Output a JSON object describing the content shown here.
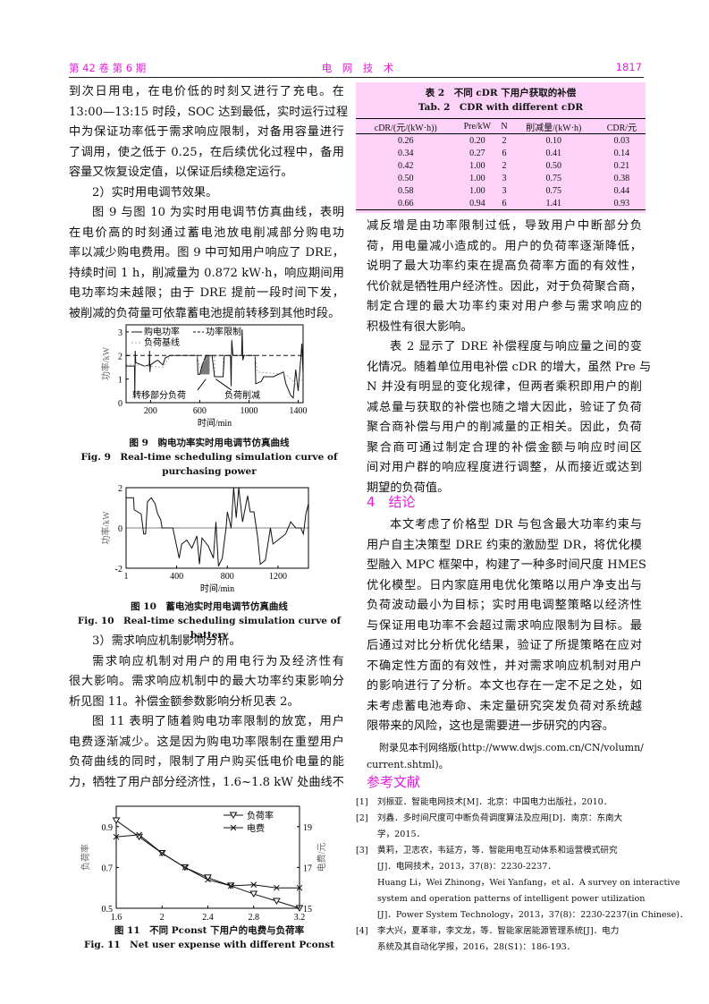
{
  "header": {
    "left": "第 42 卷 第 6 期",
    "center": "电　网　技　术",
    "right": "1817"
  },
  "left": {
    "p1": [
      "到次日用电，在电价低的时刻又进行了充电。在",
      "13:00—13:15 时段，SOC 达到最低，实时运行过程",
      "中为保证功率低于需求响应限制，对备用容量进行",
      "了调用，使之低于 0.25，在后续优化过程中，备用",
      "容量又恢复设定值，以保证后续稳定运行。"
    ],
    "s2": "2）实时用电调节效果。",
    "p2": [
      "图 9 与图 10 为实时用电调节仿真曲线，表明",
      "在电价高的时刻通过蓄电池放电削减部分购电功",
      "率以减少购电费用。图 9 中可知用户响应了 DRE，",
      "持续时间 1 h，削减量为 0.872 kW·h，响应期间用",
      "电功率均未越限；由于 DRE 提前一段时间下发，",
      "被削减的负荷量可依靠蓄电池提前转移到其他时段。"
    ],
    "s3": "3）需求响应机制影响分析。",
    "p3": [
      "需求响应机制对用户的用电行为及经济性有",
      "很大影响。需求响应机制中的最大功率约束影响分",
      "析见图 11。补偿金额参数影响分析见表 2。"
    ],
    "p4": [
      "图 11 表明了随着购电功率限制的放宽，用户",
      "电费逐渐减少。这是因为购电功率限制在重塑用户",
      "负荷曲线的同时，限制了用户购买低电价电量的能",
      "力，牺牲了用户部分经济性，1.6~1.8 kW 处曲线不"
    ]
  },
  "fig9": {
    "cap_cn": "图 9　购电功率实时用电调节仿真曲线",
    "cap_en": [
      "Fig. 9　Real-time scheduling simulation curve of",
      "purchasing power"
    ]
  },
  "fig10": {
    "cap_cn": "图 10　蓄电池实时用电调节仿真曲线",
    "cap_en": "Fig. 10　Real-time scheduling simulation curve of battery"
  },
  "fig11": {
    "cap_cn": "图 11　不同 Pconst 下用户的电费与负荷率",
    "cap_en": "Fig. 11　Net user expense with different Pconst"
  },
  "chart_data": [
    {
      "type": "line",
      "xlabel": "时间/min",
      "ylabel": "功率/kW",
      "xlim": [
        1,
        1440
      ],
      "ylim": [
        0,
        3.3
      ],
      "xticks": [
        200,
        600,
        1000,
        1400
      ],
      "yticks": [
        0,
        1,
        2,
        3
      ],
      "series": [
        {
          "name": "购电功率",
          "style": "solid",
          "points": [
            [
              1,
              1.55
            ],
            [
              70,
              1.55
            ],
            [
              72,
              0.25
            ],
            [
              75,
              2.2
            ],
            [
              80,
              1.7
            ],
            [
              150,
              1.55
            ],
            [
              190,
              1.6
            ],
            [
              192,
              2.2
            ],
            [
              195,
              1.3
            ],
            [
              200,
              1.6
            ],
            [
              240,
              1.75
            ],
            [
              260,
              1.8
            ],
            [
              300,
              1.6
            ],
            [
              320,
              1.9
            ],
            [
              360,
              2.0
            ],
            [
              580,
              2.0
            ],
            [
              585,
              1.2
            ],
            [
              600,
              1.2
            ],
            [
              620,
              1.6
            ],
            [
              650,
              2.0
            ],
            [
              700,
              2.0
            ],
            [
              720,
              1.1
            ],
            [
              790,
              1.1
            ],
            [
              800,
              2.0
            ],
            [
              850,
              2.0
            ],
            [
              855,
              0.7
            ],
            [
              860,
              2.65
            ],
            [
              870,
              2.0
            ],
            [
              940,
              2.0
            ],
            [
              945,
              3.1
            ],
            [
              950,
              1.8
            ],
            [
              960,
              2.0
            ],
            [
              1050,
              2.0
            ],
            [
              1055,
              0.8
            ],
            [
              1100,
              0.9
            ],
            [
              1120,
              1.1
            ],
            [
              1200,
              1.1
            ],
            [
              1280,
              1.3
            ],
            [
              1300,
              0.8
            ],
            [
              1340,
              0.3
            ],
            [
              1360,
              0.2
            ],
            [
              1380,
              1.4
            ],
            [
              1400,
              0.5
            ],
            [
              1420,
              1.8
            ],
            [
              1430,
              2.5
            ],
            [
              1440,
              1.2
            ]
          ]
        },
        {
          "name": "负荷基线",
          "style": "dotted",
          "points": [
            [
              1,
              1.6
            ],
            [
              80,
              1.6
            ],
            [
              300,
              1.5
            ],
            [
              360,
              2.0
            ],
            [
              580,
              2.0
            ],
            [
              600,
              1.5
            ],
            [
              640,
              1.8
            ],
            [
              700,
              2.0
            ],
            [
              1050,
              2.0
            ],
            [
              1070,
              1.3
            ],
            [
              1300,
              1.2
            ],
            [
              1380,
              0.8
            ],
            [
              1440,
              1.0
            ]
          ]
        },
        {
          "name": "功率限制",
          "style": "dashed",
          "points": [
            [
              1,
              2.0
            ],
            [
              1440,
              2.0
            ]
          ]
        }
      ],
      "annotations": [
        "转移部分负荷",
        "负荷削减"
      ]
    },
    {
      "type": "line",
      "xlabel": "时间/min",
      "ylabel": "功率/kW",
      "xlim": [
        1,
        1440
      ],
      "ylim": [
        -2,
        2
      ],
      "xticks": [
        1,
        400,
        800,
        1200
      ],
      "yticks": [
        -2,
        0,
        2
      ],
      "series": [
        {
          "points": [
            [
              1,
              1.5
            ],
            [
              60,
              1.5
            ],
            [
              65,
              0.9
            ],
            [
              120,
              0.7
            ],
            [
              140,
              -0.3
            ],
            [
              155,
              -0.3
            ],
            [
              170,
              1.3
            ],
            [
              200,
              1.5
            ],
            [
              230,
              1.2
            ],
            [
              250,
              0.7
            ],
            [
              275,
              0.4
            ],
            [
              285,
              0.0
            ],
            [
              370,
              0
            ],
            [
              380,
              -0.3
            ],
            [
              400,
              -0.9
            ],
            [
              420,
              -1.5
            ],
            [
              440,
              -0.8
            ],
            [
              480,
              -0.6
            ],
            [
              520,
              -1.0
            ],
            [
              560,
              -0.4
            ],
            [
              580,
              -1.8
            ],
            [
              600,
              -0.5
            ],
            [
              650,
              -0.9
            ],
            [
              690,
              -1.5
            ],
            [
              710,
              0.3
            ],
            [
              730,
              -1.9
            ],
            [
              760,
              -1.5
            ],
            [
              790,
              0.0
            ],
            [
              800,
              0.8
            ],
            [
              830,
              0.0
            ],
            [
              850,
              2.0
            ],
            [
              870,
              0.5
            ],
            [
              890,
              2.0
            ],
            [
              920,
              0.3
            ],
            [
              960,
              1.6
            ],
            [
              980,
              0.8
            ],
            [
              1010,
              0.8
            ],
            [
              1040,
              -0.5
            ],
            [
              1060,
              -1.8
            ],
            [
              1100,
              -1.6
            ],
            [
              1140,
              0.0
            ],
            [
              1160,
              -0.8
            ],
            [
              1260,
              -0.3
            ],
            [
              1300,
              0.3
            ],
            [
              1340,
              0.0
            ],
            [
              1380,
              0.0
            ],
            [
              1400,
              -0.3
            ],
            [
              1420,
              0.7
            ],
            [
              1440,
              1.2
            ]
          ]
        }
      ]
    },
    {
      "type": "line",
      "xlabel": "Pconst/kW",
      "ylabel": "负荷率",
      "ylabel_right": "电费/元",
      "x": [
        1.6,
        1.8,
        2.0,
        2.2,
        2.4,
        2.6,
        2.8,
        3.0,
        3.2
      ],
      "xlim": [
        1.6,
        3.2
      ],
      "ylim": [
        0.5,
        1.0
      ],
      "ylim_right": [
        15,
        20
      ],
      "xticks": [
        1.6,
        2.0,
        2.4,
        2.8,
        3.2
      ],
      "yticks": [
        0.5,
        0.7,
        0.9
      ],
      "yticks_right": [
        15,
        17,
        19
      ],
      "series": [
        {
          "name": "负荷率",
          "axis": "left",
          "marker": "triangle-down",
          "values": [
            0.93,
            0.85,
            0.77,
            0.7,
            0.65,
            0.61,
            0.57,
            0.535,
            0.5
          ]
        },
        {
          "name": "电费",
          "axis": "right",
          "marker": "x",
          "values": [
            18.5,
            18.6,
            17.7,
            17.0,
            16.4,
            16.1,
            16.15,
            16.0,
            16.0
          ]
        }
      ],
      "legend": "top-right"
    }
  ],
  "table2": {
    "title_cn": "表 2　不同 cDR 下用户获取的补偿",
    "title_en": "Tab. 2　CDR with different cDR",
    "headers": [
      "cDR/(元/(kW·h))",
      "Pre/kW",
      "N",
      "削减量/(kW·h)",
      "CDR/元"
    ],
    "rows": [
      [
        "0.26",
        "0.20",
        "2",
        "0.10",
        "0.03"
      ],
      [
        "0.34",
        "0.27",
        "6",
        "0.41",
        "0.14"
      ],
      [
        "0.42",
        "1.00",
        "2",
        "0.50",
        "0.21"
      ],
      [
        "0.50",
        "1.00",
        "3",
        "0.75",
        "0.38"
      ],
      [
        "0.58",
        "1.00",
        "3",
        "0.75",
        "0.44"
      ],
      [
        "0.66",
        "0.94",
        "6",
        "1.41",
        "0.93"
      ]
    ]
  },
  "right": {
    "p1": [
      "减反增是由功率限制过低，导致用户中断部分负",
      "荷，用电量减小造成的。用户的负荷率逐渐降低，",
      "说明了最大功率约束在提高负荷率方面的有效性，",
      "代价就是牺牲用户经济性。因此，对于负荷聚合商，",
      "制定合理的最大功率约束对用户参与需求响应的",
      "积极性有很大影响。"
    ],
    "p2": [
      "表 2 显示了 DRE 补偿程度与响应量之间的变",
      "化情况。随着单位用电补偿 cDR 的增大，虽然 Pre 与",
      "N 并没有明显的变化规律，但两者乘积即用户的削",
      "减总量与获取的补偿也随之增大因此，验证了负荷",
      "聚合商补偿与用户的削减量的正相关。因此，负荷",
      "聚合商可通过制定合理的补偿金额与响应时间区",
      "间对用户群的响应程度进行调整，从而接近或达到",
      "期望的负荷值。"
    ],
    "h4": "4　结论",
    "p3": [
      "本文考虑了价格型 DR 与包含最大功率约束与",
      "用户自主决策型 DRE 约束的激励型 DR，将优化模",
      "型融入 MPC 框架中，构建了一种多时间尺度 HMES",
      "优化模型。日内家庭用电优化策略以用户净支出与",
      "负荷波动最小为目标；实时用电调整策略以经济性",
      "与保证用电功率不会超过需求响应限制为目标。最",
      "后通过对比分析优化结果，验证了所提策略在应对",
      "不确定性方面的有效性，并对需求响应机制对用户",
      "的影响进行了分析。本文也存在一定不足之处，如",
      "未考虑蓄电池寿命、未定量研究突发负荷对系统越",
      "限带来的风险，这也是需要进一步研究的内容。"
    ],
    "appendix": [
      "附录见本刊网络版(http://www.dwjs.com.cn/CN/volumn/",
      "current.shtml)。"
    ],
    "refs_title": "参考文献",
    "refs": [
      {
        "n": "[1]",
        "lines": [
          "刘振亚．智能电网技术[M]．北京：中国电力出版社，2010．"
        ]
      },
      {
        "n": "[2]",
        "lines": [
          "刘鑫．多时间尺度可中断负荷调度算法及应用[D]．南京：东南大",
          "学，2015．"
        ]
      },
      {
        "n": "[3]",
        "lines": [
          "黄莉，卫志农，韦延方，等．智能用电互动体系和运营模式研究",
          "[J]．电网技术，2013，37(8)：2230-2237．",
          "Huang Li，Wei Zhinong，Wei Yanfang，et al．A survey on interactive",
          "system and operation patterns of intelligent power utilization",
          "[J]．Power System Technology，2013，37(8)：2230-2237(in Chinese)．"
        ]
      },
      {
        "n": "[4]",
        "lines": [
          "李大兴，夏革非，李文龙，等．智能家居能源管理系统[J]．电力",
          "系统及其自动化学报，2016，28(S1)：186-193．"
        ]
      }
    ]
  }
}
